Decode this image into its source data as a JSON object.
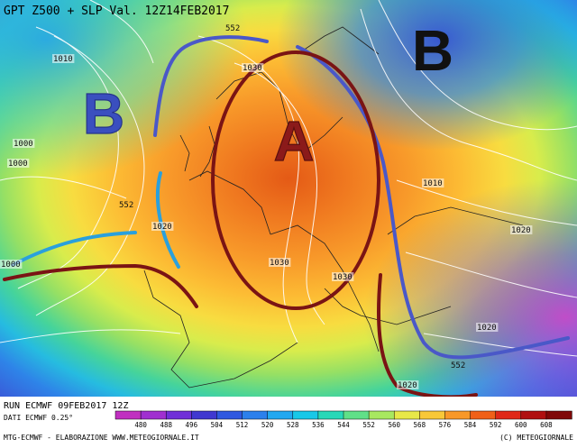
{
  "header": {
    "title": "GPT Z500 + SLP Val. 12Z14FEB2017"
  },
  "map": {
    "pressure_systems": [
      {
        "id": "high",
        "symbol": "A",
        "color": "#8b1a1a"
      },
      {
        "id": "low_west",
        "symbol": "B",
        "color": "#3a4fbf"
      },
      {
        "id": "low_east",
        "symbol": "B",
        "color": "#111111"
      }
    ],
    "isobar_labels": [
      "1010",
      "1000",
      "1000",
      "1020",
      "1030",
      "1030",
      "1010",
      "1020",
      "1020",
      "1030",
      "1000",
      "1020"
    ],
    "geopotential_labels": [
      "552",
      "552",
      "552"
    ],
    "colors": {
      "ridge_line": "#4a58c8",
      "trough_line": "#2aa0dc",
      "axis_line": "#7a1414",
      "high_ellipse": "#7a1414"
    }
  },
  "footer": {
    "run_line": "RUN ECMWF 09FEB2017 12Z",
    "data_line": "DATI ECMWF 0.25°",
    "credit_left": "MTG-ECMWF  -  ELABORAZIONE WWW.METEOGIORNALE.IT",
    "credit_right": "(C) METEOGIORNALE",
    "scale_values": [
      "480",
      "488",
      "496",
      "504",
      "512",
      "520",
      "528",
      "536",
      "544",
      "552",
      "560",
      "568",
      "576",
      "584",
      "592",
      "600",
      "608"
    ],
    "scale_colors": [
      "#c030c0",
      "#a030d0",
      "#7030d8",
      "#4038d0",
      "#3058e0",
      "#2c80ec",
      "#22a8f0",
      "#18c8e8",
      "#28d8b8",
      "#60e088",
      "#a8e860",
      "#e8e848",
      "#f8c838",
      "#f89828",
      "#f06018",
      "#e02818",
      "#b01010",
      "#800808"
    ]
  }
}
